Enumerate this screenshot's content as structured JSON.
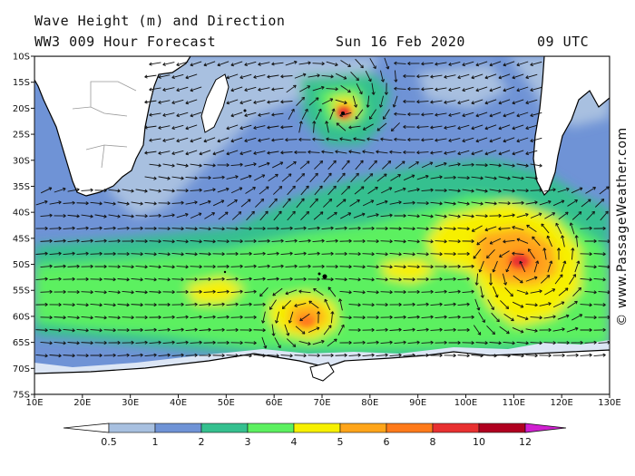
{
  "header": {
    "title": "Wave Height (m) and Direction",
    "model": "WW3 009 Hour Forecast",
    "date": "Sun 16 Feb 2020",
    "time": "09 UTC"
  },
  "credit": "© www.PassageWeather.com",
  "map": {
    "lat_labels": [
      "10S",
      "15S",
      "20S",
      "25S",
      "30S",
      "35S",
      "40S",
      "45S",
      "50S",
      "55S",
      "60S",
      "65S",
      "70S",
      "75S"
    ],
    "lon_labels": [
      "10E",
      "20E",
      "30E",
      "40E",
      "50E",
      "60E",
      "70E",
      "80E",
      "90E",
      "100E",
      "110E",
      "120E",
      "130E"
    ],
    "land_color": "#ffffff",
    "coast_color": "#000000",
    "arrow_color": "#111111"
  },
  "colorbar": {
    "labels": [
      "0.5",
      "1",
      "2",
      "3",
      "4",
      "5",
      "6",
      "8",
      "10",
      "12"
    ],
    "colors": [
      "#dce6f5",
      "#a8c0e0",
      "#6f93d6",
      "#35c08f",
      "#5cf060",
      "#f7f000",
      "#ffa51a",
      "#ff7a1a",
      "#e83030",
      "#b00020",
      "#d020d0"
    ]
  }
}
